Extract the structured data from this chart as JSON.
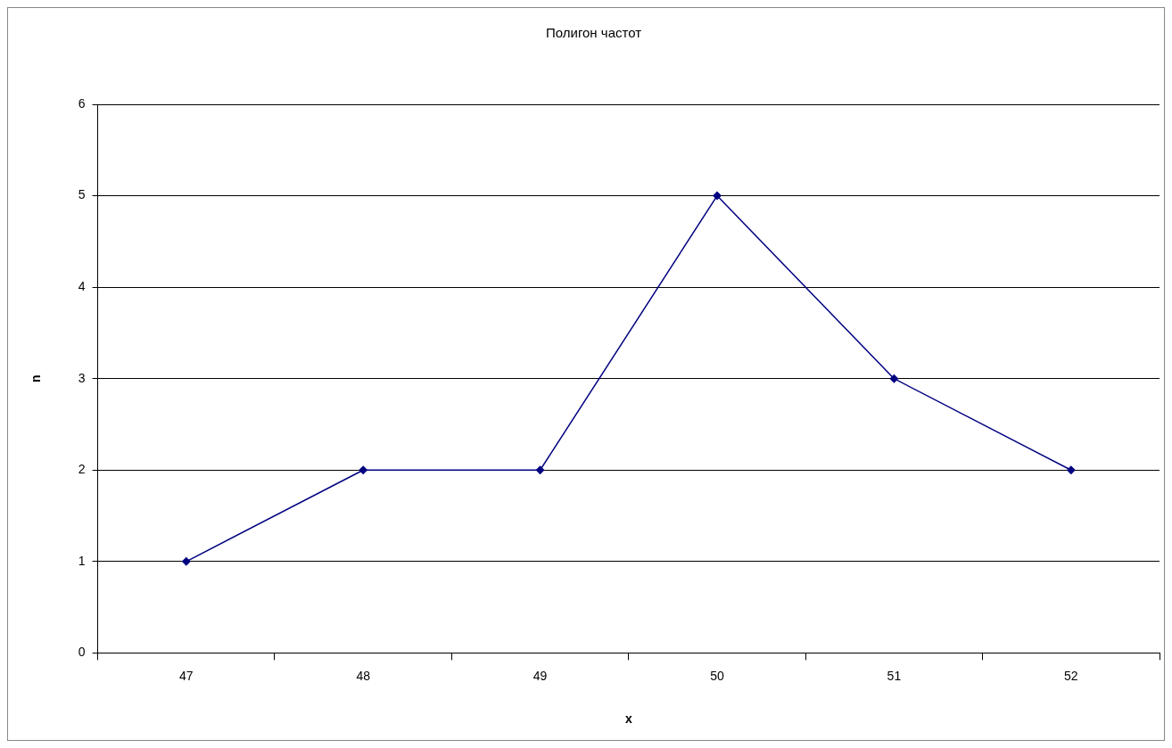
{
  "chart_data": {
    "type": "line",
    "title": "Полигон частот",
    "xlabel": "x",
    "ylabel": "n",
    "categories": [
      "47",
      "48",
      "49",
      "50",
      "51",
      "52"
    ],
    "series": [
      {
        "color": "#000080",
        "values": [
          1,
          2,
          2,
          5,
          3,
          2
        ]
      }
    ],
    "ylim": [
      0,
      6
    ],
    "yticks": [
      0,
      1,
      2,
      3,
      4,
      5,
      6
    ],
    "grid": "y",
    "legend": false,
    "marker": "diamond",
    "line_style": "solid"
  }
}
